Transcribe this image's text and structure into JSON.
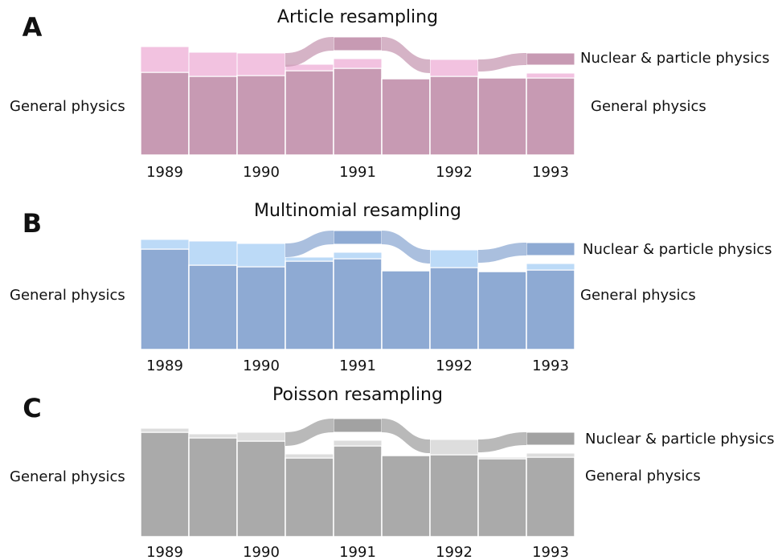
{
  "chart_data": [
    {
      "type": "alluvial",
      "panel": "A",
      "title": "Article resampling",
      "categories": [
        "1989",
        null,
        "1990",
        null,
        "1991",
        null,
        "1992",
        null,
        "1993"
      ],
      "series": [
        {
          "name": "General physics",
          "color": "#c79ab3",
          "values": [
            103,
            98,
            99,
            105,
            108,
            95,
            98,
            96,
            96
          ]
        },
        {
          "color": "#f2c2e0",
          "values": [
            32,
            30,
            28,
            8,
            12,
            0,
            21,
            0,
            6
          ]
        },
        {
          "name": "Nuclear & particle physics",
          "color": "#c79ab3",
          "values": [
            null,
            null,
            null,
            null,
            17,
            null,
            null,
            null,
            15
          ]
        }
      ]
    },
    {
      "type": "alluvial",
      "panel": "B",
      "title": "Multinomial resampling",
      "categories": [
        "1989",
        null,
        "1990",
        null,
        "1991",
        null,
        "1992",
        null,
        "1993"
      ],
      "series": [
        {
          "name": "General physics",
          "color": "#8eaad3",
          "values": [
            125,
            105,
            103,
            110,
            113,
            98,
            102,
            97,
            99
          ]
        },
        {
          "color": "#bcdaf7",
          "values": [
            12,
            30,
            29,
            5,
            8,
            0,
            22,
            0,
            8
          ]
        },
        {
          "name": "Nuclear & particle physics",
          "color": "#8eaad3",
          "values": [
            null,
            null,
            null,
            null,
            17,
            null,
            null,
            null,
            16
          ]
        }
      ]
    },
    {
      "type": "alluvial",
      "panel": "C",
      "title": "Poisson resampling",
      "categories": [
        "1989",
        null,
        "1990",
        null,
        "1991",
        null,
        "1992",
        null,
        "1993"
      ],
      "series": [
        {
          "name": "General physics",
          "color": "#aaaaaa",
          "values": [
            130,
            123,
            119,
            98,
            113,
            101,
            102,
            97,
            99
          ]
        },
        {
          "color": "#dddddd",
          "values": [
            5,
            5,
            11,
            5,
            7,
            0,
            19,
            2,
            5
          ]
        },
        {
          "name": "Nuclear & particle physics",
          "color": "#a2a2a2",
          "values": [
            null,
            null,
            null,
            null,
            17,
            null,
            null,
            null,
            16
          ]
        }
      ]
    }
  ]
}
